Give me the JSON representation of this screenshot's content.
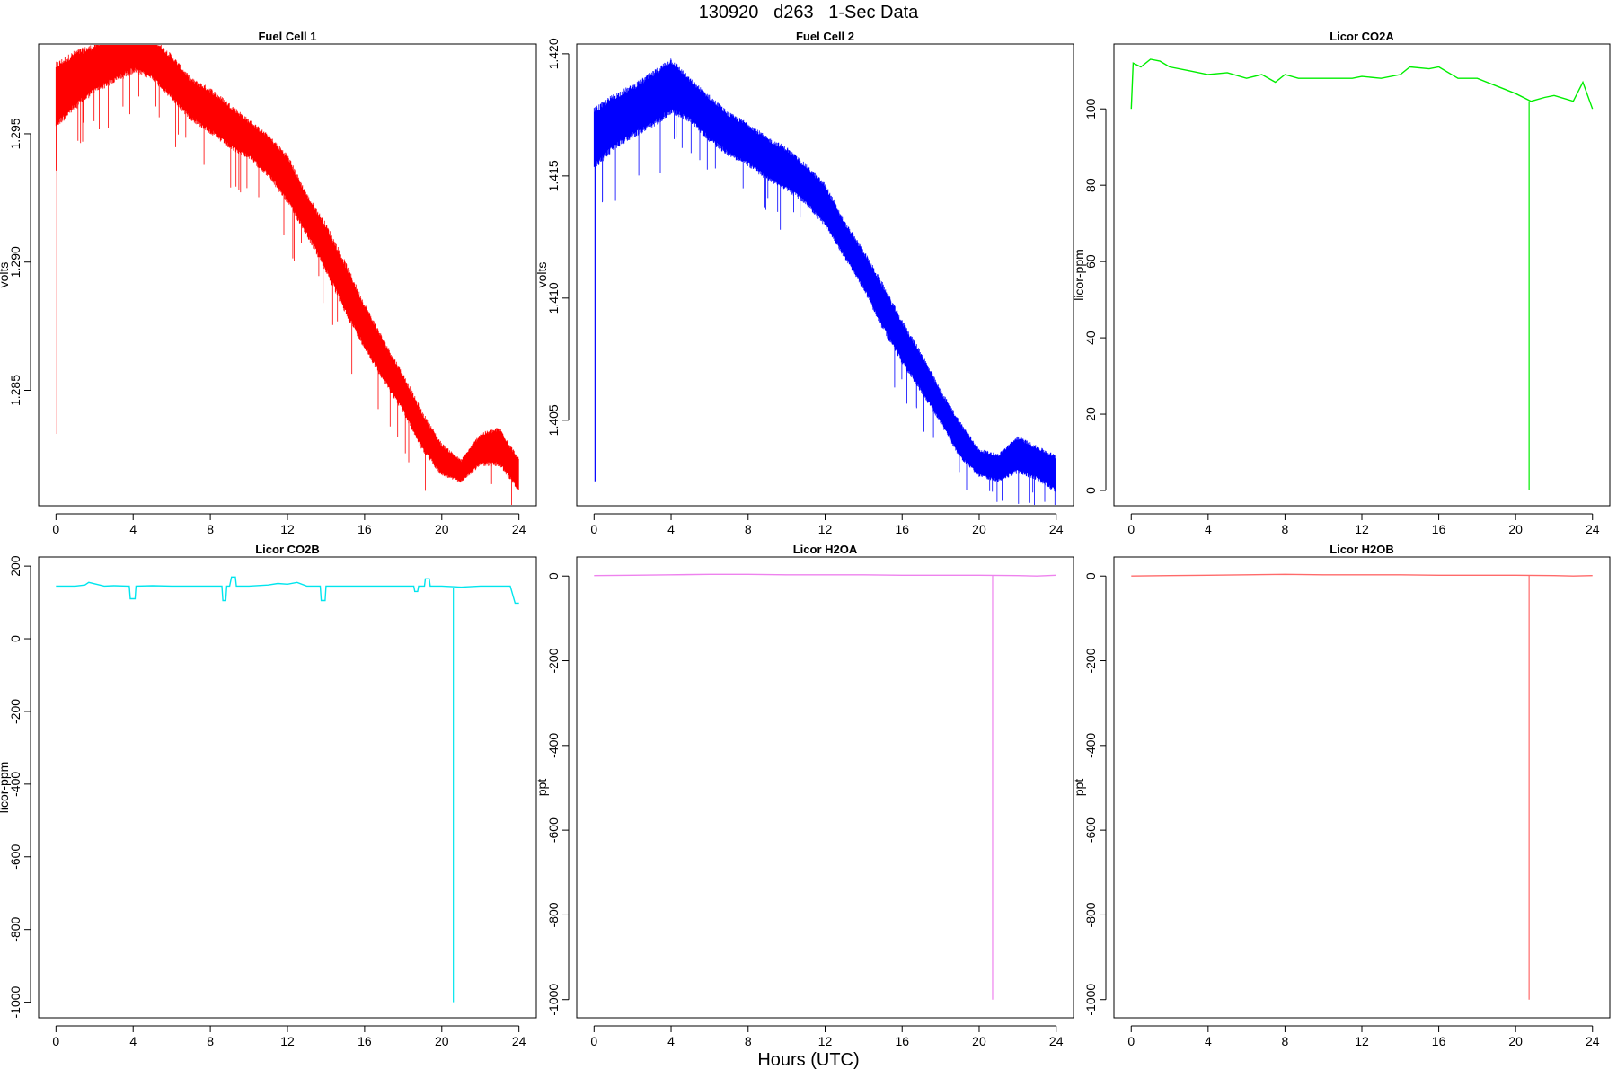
{
  "page": {
    "title": "130920   d263   1-Sec Data",
    "xlabel": "Hours (UTC)"
  },
  "chart_data": [
    {
      "id": "fc1",
      "type": "line",
      "title": "Fuel Cell 1",
      "ylabel": "volts",
      "color": "#ff0000",
      "xlim": [
        -0.9,
        24.9
      ],
      "ylim": [
        1.2805,
        1.2985
      ],
      "xticks": [
        0,
        4,
        8,
        12,
        16,
        20,
        24
      ],
      "yticks": [
        1.285,
        1.29,
        1.295
      ],
      "ytick_labels": [
        "1.285",
        "1.290",
        "1.295"
      ],
      "series": [
        {
          "x": [
            0,
            1,
            2,
            3,
            4,
            5,
            6,
            7,
            8,
            9,
            10,
            11,
            12,
            13,
            14,
            15,
            16,
            17,
            18,
            19,
            20,
            21,
            22,
            23,
            24
          ],
          "y_low": [
            1.2955,
            1.2962,
            1.2968,
            1.2972,
            1.2976,
            1.2973,
            1.2965,
            1.2957,
            1.2952,
            1.2946,
            1.2942,
            1.2935,
            1.2925,
            1.2912,
            1.2898,
            1.2882,
            1.2868,
            1.2855,
            1.2843,
            1.2828,
            1.2818,
            1.2815,
            1.2822,
            1.2822,
            1.2812
          ],
          "y_high": [
            1.2975,
            1.298,
            1.2983,
            1.2989,
            1.2993,
            1.2986,
            1.2979,
            1.297,
            1.2966,
            1.296,
            1.2954,
            1.2948,
            1.294,
            1.2925,
            1.2913,
            1.2898,
            1.2882,
            1.2868,
            1.2855,
            1.284,
            1.2828,
            1.2822,
            1.2832,
            1.2834,
            1.2822
          ]
        }
      ],
      "spikes": [
        {
          "x": 0.05,
          "y1": 1.2963,
          "y2": 1.2833
        }
      ]
    },
    {
      "id": "fc2",
      "type": "line",
      "title": "Fuel Cell 2",
      "ylabel": "volts",
      "color": "#0000ff",
      "xlim": [
        -0.9,
        24.9
      ],
      "ylim": [
        1.4015,
        1.4204
      ],
      "xticks": [
        0,
        4,
        8,
        12,
        16,
        20,
        24
      ],
      "yticks": [
        1.405,
        1.41,
        1.415,
        1.42
      ],
      "ytick_labels": [
        "1.405",
        "1.410",
        "1.415",
        "1.420"
      ],
      "series": [
        {
          "x": [
            0,
            1,
            2,
            3,
            4,
            5,
            6,
            7,
            8,
            9,
            10,
            11,
            12,
            13,
            14,
            15,
            16,
            17,
            18,
            19,
            20,
            21,
            22,
            23,
            24
          ],
          "y_low": [
            1.4155,
            1.4163,
            1.4168,
            1.4172,
            1.4178,
            1.4174,
            1.4166,
            1.416,
            1.4156,
            1.415,
            1.4146,
            1.414,
            1.4131,
            1.4118,
            1.4105,
            1.4089,
            1.4075,
            1.4063,
            1.405,
            1.4036,
            1.4028,
            1.4026,
            1.403,
            1.4027,
            1.4022
          ],
          "y_high": [
            1.4175,
            1.4181,
            1.4185,
            1.419,
            1.4196,
            1.4188,
            1.4181,
            1.4174,
            1.417,
            1.4164,
            1.416,
            1.4153,
            1.4145,
            1.413,
            1.4118,
            1.4104,
            1.4089,
            1.4076,
            1.4061,
            1.4048,
            1.4037,
            1.4035,
            1.4042,
            1.4038,
            1.4034
          ]
        }
      ],
      "spikes": [
        {
          "x": 0.05,
          "y1": 1.4163,
          "y2": 1.4025
        }
      ]
    },
    {
      "id": "co2a",
      "type": "line",
      "title": "Licor CO2A",
      "ylabel": "licor-ppm",
      "color": "#00ee00",
      "xlim": [
        -0.9,
        24.9
      ],
      "ylim": [
        -4,
        117
      ],
      "xticks": [
        0,
        4,
        8,
        12,
        16,
        20,
        24
      ],
      "yticks": [
        0,
        20,
        40,
        60,
        80,
        100
      ],
      "ytick_labels": [
        "0",
        "20",
        "40",
        "60",
        "80",
        "100"
      ],
      "series": [
        {
          "x": [
            0,
            0.1,
            0.5,
            1.0,
            1.5,
            2.0,
            3.0,
            4.0,
            5.0,
            6.0,
            6.8,
            7.5,
            8.0,
            8.7,
            9.5,
            10.5,
            11.5,
            12.0,
            13.0,
            14.0,
            14.5,
            15.5,
            16.0,
            17.0,
            18.0,
            19.0,
            20.0,
            20.8,
            21.5,
            22.0,
            23.0,
            23.5,
            24.0
          ],
          "y": [
            100,
            112,
            111,
            113,
            112.5,
            111,
            110,
            109,
            109.5,
            108,
            109,
            107,
            109,
            108,
            108,
            108,
            108,
            108.5,
            108,
            109,
            111,
            110.5,
            111,
            108,
            108,
            106,
            104,
            102,
            103,
            103.5,
            102,
            107,
            100
          ]
        }
      ],
      "spikes": [
        {
          "x": 20.7,
          "y1": 102,
          "y2": 0
        }
      ]
    },
    {
      "id": "co2b",
      "type": "line",
      "title": "Licor CO2B",
      "ylabel": "licor-ppm",
      "color": "#00e5ee",
      "xlim": [
        -0.9,
        24.9
      ],
      "ylim": [
        -1043,
        225
      ],
      "xticks": [
        0,
        4,
        8,
        12,
        16,
        20,
        24
      ],
      "yticks": [
        -1000,
        -800,
        -600,
        -400,
        -200,
        0,
        200
      ],
      "ytick_labels": [
        "-1000",
        "-800",
        "-600",
        "-400",
        "-200",
        "0",
        "200"
      ],
      "series": [
        {
          "x": [
            0,
            1.0,
            1.5,
            1.7,
            2.5,
            3.0,
            3.7,
            3.8,
            3.85,
            4.1,
            4.15,
            5.0,
            6.0,
            7.0,
            8.0,
            8.6,
            8.65,
            8.8,
            8.85,
            9.0,
            9.1,
            9.3,
            9.35,
            10.0,
            11.0,
            11.5,
            12.0,
            12.5,
            13.0,
            13.7,
            13.75,
            13.95,
            14.0,
            15.0,
            16.0,
            17.0,
            18.0,
            18.55,
            18.6,
            18.75,
            18.8,
            19.1,
            19.15,
            19.35,
            19.4,
            20.0,
            21.0,
            22.0,
            23.5,
            23.55,
            23.8,
            23.85,
            24.0
          ],
          "y": [
            145,
            145,
            148,
            155,
            145,
            146,
            145,
            145,
            110,
            110,
            145,
            146,
            145,
            145,
            145,
            145,
            105,
            105,
            145,
            145,
            170,
            170,
            145,
            145,
            148,
            152,
            150,
            155,
            145,
            145,
            105,
            105,
            145,
            145,
            145,
            145,
            145,
            145,
            130,
            130,
            145,
            145,
            165,
            165,
            145,
            145,
            142,
            145,
            145,
            145,
            98,
            98,
            98
          ]
        }
      ],
      "spikes": [
        {
          "x": 20.6,
          "y1": 140,
          "y2": -1000
        }
      ]
    },
    {
      "id": "h2oa",
      "type": "line",
      "title": "Licor H2OA",
      "ylabel": "ppt",
      "color": "#ee82ee",
      "xlim": [
        -0.9,
        24.9
      ],
      "ylim": [
        -1043,
        45
      ],
      "xticks": [
        0,
        4,
        8,
        12,
        16,
        20,
        24
      ],
      "yticks": [
        -1000,
        -800,
        -600,
        -400,
        -200,
        0
      ],
      "ytick_labels": [
        "-1000",
        "-800",
        "-600",
        "-400",
        "-200",
        "0"
      ],
      "series": [
        {
          "x": [
            0,
            2,
            4,
            6,
            8,
            10,
            12,
            14,
            16,
            18,
            20,
            22,
            23,
            24
          ],
          "y": [
            1,
            2,
            3,
            4,
            4,
            3,
            3,
            3,
            2,
            2,
            2,
            1,
            0,
            2
          ]
        }
      ],
      "spikes": [
        {
          "x": 20.7,
          "y1": 2,
          "y2": -1000
        }
      ]
    },
    {
      "id": "h2ob",
      "type": "line",
      "title": "Licor H2OB",
      "ylabel": "ppt",
      "color": "#ff6a6a",
      "xlim": [
        -0.9,
        24.9
      ],
      "ylim": [
        -1043,
        45
      ],
      "xticks": [
        0,
        4,
        8,
        12,
        16,
        20,
        24
      ],
      "yticks": [
        -1000,
        -800,
        -600,
        -400,
        -200,
        0
      ],
      "ytick_labels": [
        "-1000",
        "-800",
        "-600",
        "-400",
        "-200",
        "0"
      ],
      "series": [
        {
          "x": [
            0,
            2,
            4,
            6,
            8,
            10,
            12,
            14,
            16,
            18,
            20,
            22,
            23,
            24
          ],
          "y": [
            0,
            1,
            2,
            3,
            4,
            3,
            3,
            3,
            2,
            2,
            2,
            1,
            0,
            1
          ]
        }
      ],
      "spikes": [
        {
          "x": 20.7,
          "y1": 2,
          "y2": -1000
        }
      ]
    }
  ]
}
